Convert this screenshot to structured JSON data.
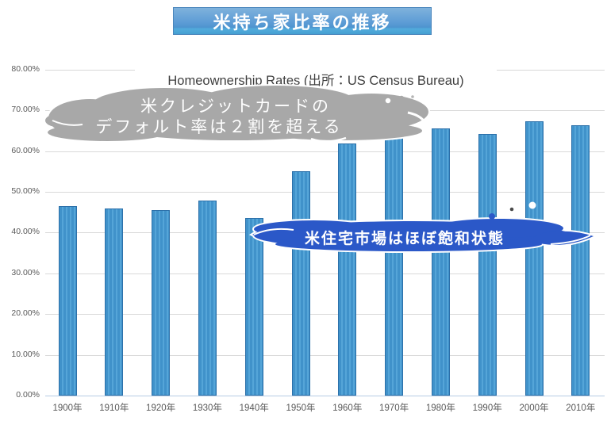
{
  "title_box": {
    "label": "米持ち家比率の推移"
  },
  "chart_data": {
    "type": "bar",
    "title": "Homeownership Rates (出所：US Census Bureau)",
    "categories": [
      "1900年",
      "1910年",
      "1920年",
      "1930年",
      "1940年",
      "1950年",
      "1960年",
      "1970年",
      "1980年",
      "1990年",
      "2000年",
      "2010年"
    ],
    "values": [
      46.5,
      45.9,
      45.6,
      47.8,
      43.6,
      55.0,
      61.9,
      64.0,
      65.6,
      64.2,
      67.4,
      66.4
    ],
    "unit": "%",
    "xlabel": "",
    "ylabel": "",
    "ylim": [
      0,
      80
    ],
    "ytick_step": 10,
    "ytick_labels": [
      "0.00%",
      "10.00%",
      "20.00%",
      "30.00%",
      "40.00%",
      "50.00%",
      "60.00%",
      "70.00%",
      "80.00%"
    ],
    "grid": true,
    "legend": "none",
    "bar_color": "#4092CA",
    "bar_border_color": "#2C70A9"
  },
  "annotations": {
    "credit_cloud": {
      "line1": "米クレジットカードの",
      "line2": "デフォルト率は２割を超える",
      "color": "#A8A8A8",
      "text_color": "#FFFFFF"
    },
    "saturation_cloud": {
      "text": "米住宅市場はほぼ飽和状態",
      "color": "#2B58C8",
      "text_color": "#FFFFFF"
    }
  },
  "colors": {
    "title_box_fill": "#5B9BD5",
    "title_box_border": "#4A86BC",
    "gridline": "#D9D9D9",
    "axis_line": "#B7CCE4",
    "axis_text": "#595959",
    "chart_title_text": "#3F3F3F"
  }
}
